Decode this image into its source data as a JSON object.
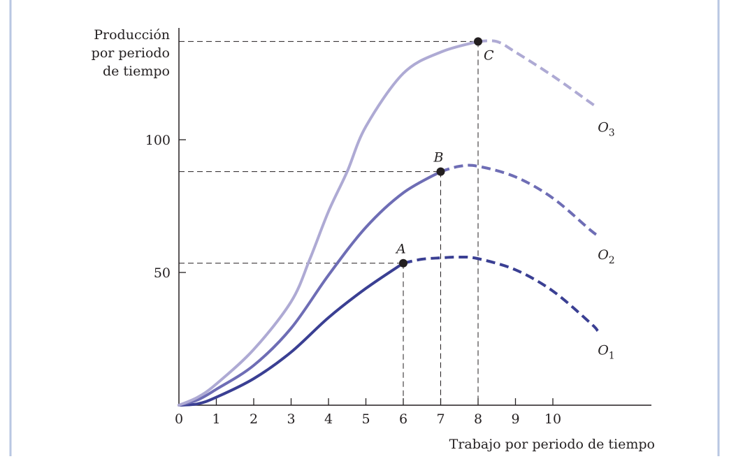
{
  "chart_data": {
    "type": "line",
    "title": "",
    "ylabel": [
      "Producción",
      "por periodo",
      "de tiempo"
    ],
    "xlabel": "Trabajo por periodo de tiempo",
    "xlim": [
      0,
      12.5
    ],
    "ylim": [
      0,
      145
    ],
    "x_ticks": [
      "0",
      "1",
      "2",
      "3",
      "4",
      "5",
      "6",
      "7",
      "8",
      "9",
      "10"
    ],
    "y_ticks": [
      {
        "value": 50,
        "label": "50"
      },
      {
        "value": 100,
        "label": "100"
      }
    ],
    "grid": false,
    "legend": "none",
    "series": [
      {
        "name": "O",
        "subscript": "1",
        "color": "#3a3f93",
        "solid_until": 6,
        "points": [
          [
            0,
            0
          ],
          [
            0.5,
            0.5
          ],
          [
            1,
            3
          ],
          [
            2,
            10
          ],
          [
            3,
            20
          ],
          [
            4,
            33
          ],
          [
            5,
            44
          ],
          [
            6,
            53.5
          ],
          [
            6.5,
            55
          ],
          [
            7,
            55.5
          ],
          [
            7.5,
            55.8
          ],
          [
            8,
            55.2
          ],
          [
            9,
            51
          ],
          [
            10,
            43
          ],
          [
            11,
            31
          ],
          [
            11.2,
            28
          ]
        ]
      },
      {
        "name": "O",
        "subscript": "2",
        "color": "#6e6db5",
        "solid_until": 7,
        "points": [
          [
            0,
            0
          ],
          [
            0.5,
            2
          ],
          [
            1,
            6
          ],
          [
            2,
            15
          ],
          [
            3,
            29
          ],
          [
            4,
            49
          ],
          [
            5,
            67
          ],
          [
            6,
            80
          ],
          [
            7,
            88
          ],
          [
            7.5,
            90
          ],
          [
            8,
            90
          ],
          [
            9,
            86
          ],
          [
            10,
            78
          ],
          [
            11,
            66
          ],
          [
            11.2,
            64
          ]
        ]
      },
      {
        "name": "O",
        "subscript": "3",
        "color": "#aeaad4",
        "solid_until": 8,
        "points": [
          [
            0,
            0
          ],
          [
            0.5,
            3
          ],
          [
            1,
            8
          ],
          [
            2,
            21
          ],
          [
            3,
            39
          ],
          [
            3.5,
            55
          ],
          [
            4,
            73
          ],
          [
            4.5,
            88
          ],
          [
            5,
            105
          ],
          [
            6,
            125
          ],
          [
            7,
            133
          ],
          [
            8,
            137
          ],
          [
            8.5,
            137
          ],
          [
            9,
            133
          ],
          [
            10,
            124
          ],
          [
            11,
            114
          ],
          [
            11.2,
            112
          ]
        ]
      }
    ],
    "points": [
      {
        "label": "A",
        "x": 6,
        "y": 53.5
      },
      {
        "label": "B",
        "x": 7,
        "y": 88
      },
      {
        "label": "C",
        "x": 8,
        "y": 137
      }
    ]
  }
}
